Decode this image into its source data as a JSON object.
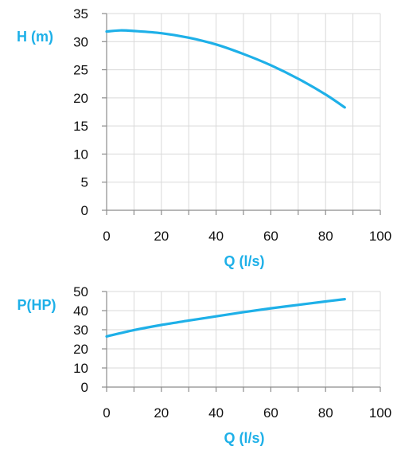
{
  "chart_data": [
    {
      "type": "line",
      "xlabel": "Q (l/s)",
      "ylabel": "H (m)",
      "xlim": [
        0,
        100
      ],
      "ylim": [
        0,
        35
      ],
      "xticks": [
        0,
        20,
        40,
        60,
        80,
        100
      ],
      "yticks": [
        0,
        5,
        10,
        15,
        20,
        25,
        30,
        35
      ],
      "grid": true,
      "color": "#1EB0E8",
      "series": [
        {
          "x": [
            0,
            5,
            10,
            20,
            30,
            40,
            50,
            60,
            70,
            80,
            87
          ],
          "y": [
            31.8,
            32.0,
            31.9,
            31.5,
            30.7,
            29.5,
            27.8,
            25.8,
            23.4,
            20.6,
            18.3
          ]
        }
      ]
    },
    {
      "type": "line",
      "xlabel": "Q (l/s)",
      "ylabel": "P(HP)",
      "xlim": [
        0,
        100
      ],
      "ylim": [
        0,
        50
      ],
      "xticks": [
        0,
        20,
        40,
        60,
        80,
        100
      ],
      "yticks": [
        0,
        10,
        20,
        30,
        40,
        50
      ],
      "grid": true,
      "color": "#1EB0E8",
      "series": [
        {
          "x": [
            0,
            10,
            20,
            30,
            40,
            50,
            60,
            70,
            80,
            87
          ],
          "y": [
            26.5,
            29.8,
            32.5,
            34.8,
            37.0,
            39.2,
            41.2,
            43.0,
            44.8,
            46.0
          ]
        }
      ]
    }
  ]
}
